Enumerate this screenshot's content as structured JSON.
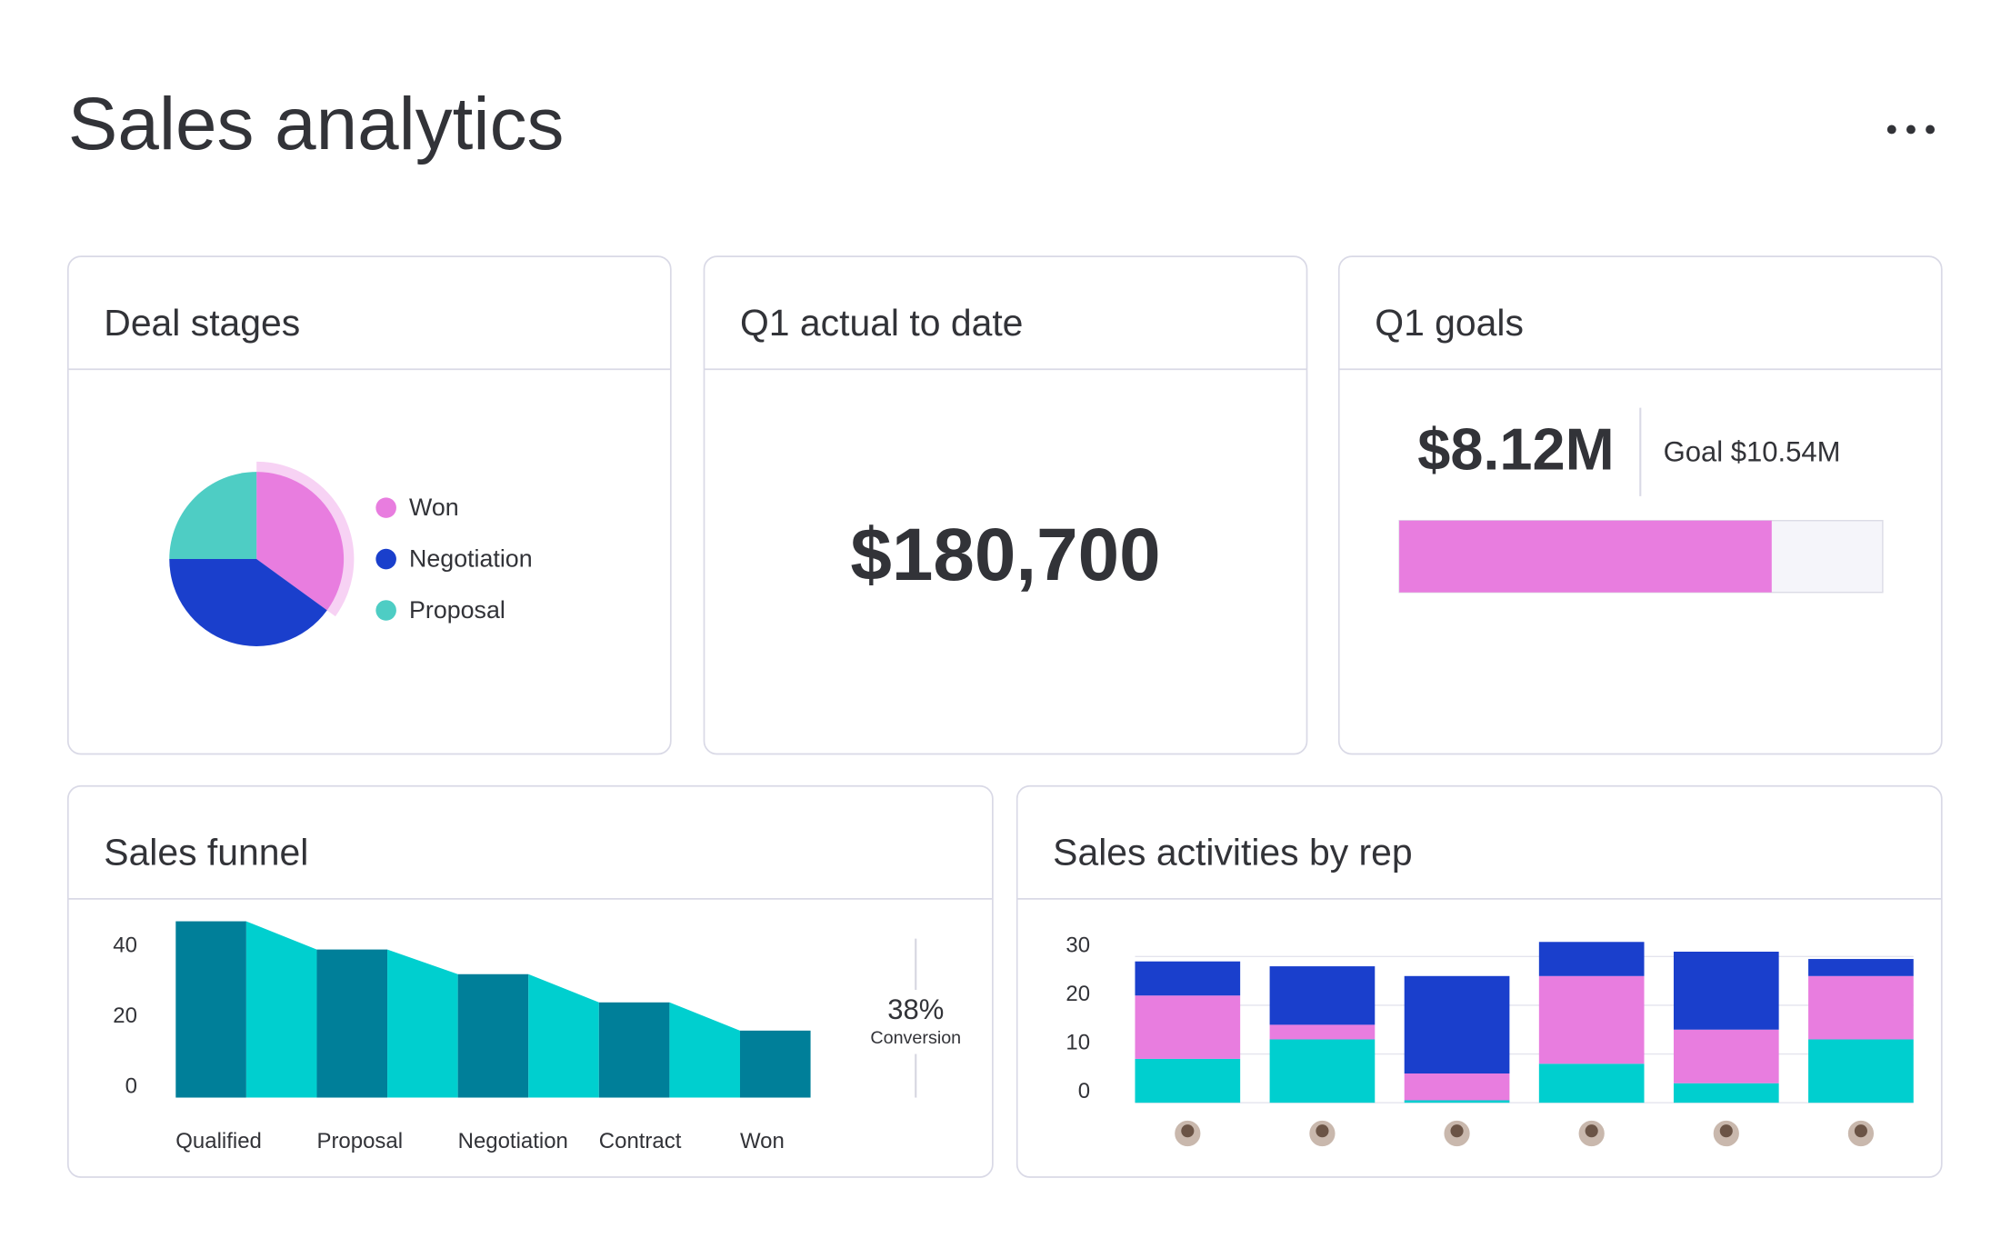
{
  "header": {
    "title": "Sales analytics"
  },
  "deal_stages": {
    "title": "Deal stages",
    "chart": {
      "type": "pie",
      "categories": [
        "Won",
        "Negotiation",
        "Proposal"
      ],
      "values": [
        35,
        40,
        25
      ],
      "colors": [
        "#e87ddf",
        "#1a3fcc",
        "#4ecdc4"
      ],
      "highlight": 0
    }
  },
  "q1_actual": {
    "title": "Q1 actual to date",
    "value": "$180,700"
  },
  "q1_goals": {
    "title": "Q1 goals",
    "actual": 8.12,
    "actual_label": "$8.12M",
    "goal": 10.54,
    "goal_label": "Goal $10.54M",
    "color": "#e87ddf"
  },
  "sales_funnel": {
    "title": "Sales funnel",
    "chart": {
      "type": "funnel",
      "categories": [
        "Qualified",
        "Proposal",
        "Negotiation",
        "Contract",
        "Won"
      ],
      "values": [
        50,
        42,
        35,
        27,
        19
      ],
      "colors": [
        "#007f99",
        "#00cfcf"
      ],
      "ylim": [
        0,
        50
      ],
      "yticks": [
        0,
        20,
        40
      ],
      "conversion": 38,
      "conversion_label": "38%",
      "conversion_caption": "Conversion"
    }
  },
  "sales_activities": {
    "title": "Sales activities by rep",
    "chart": {
      "type": "stacked_bar",
      "categories": [
        null,
        null,
        null,
        null,
        null,
        null
      ],
      "series": [
        {
          "color": "#00cfcf",
          "values": [
            9,
            13,
            0.5,
            8,
            4,
            13
          ]
        },
        {
          "color": "#e87ddf",
          "values": [
            13,
            3,
            5.5,
            18,
            11,
            13
          ]
        },
        {
          "color": "#1a3fcc",
          "values": [
            7,
            12,
            20,
            7,
            16,
            3.5
          ]
        }
      ],
      "ylim": [
        0,
        33
      ],
      "yticks": [
        0,
        10,
        20,
        30
      ],
      "grid": true
    }
  }
}
